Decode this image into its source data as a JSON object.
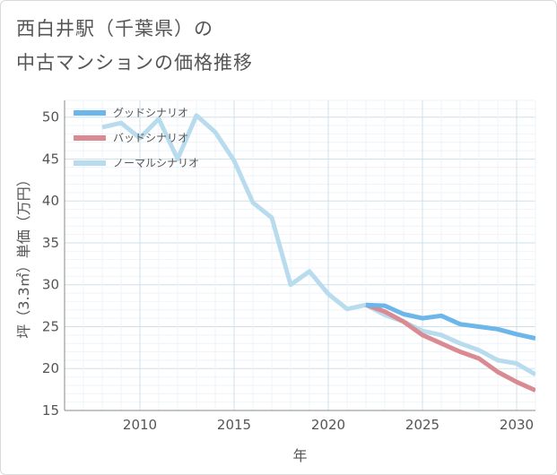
{
  "title_line1": "西白井駅（千葉県）の",
  "title_line2": "中古マンションの価格推移",
  "chart_data": {
    "type": "line",
    "title": "西白井駅（千葉県）の中古マンションの価格推移",
    "xlabel": "年",
    "ylabel": "坪（3.3㎡）単価（万円）",
    "xlim": [
      2006,
      2031
    ],
    "ylim": [
      15,
      52
    ],
    "xticks": [
      2010,
      2015,
      2020,
      2025,
      2030
    ],
    "yticks": [
      15,
      20,
      25,
      30,
      35,
      40,
      45,
      50
    ],
    "grid": true,
    "legend_position": "top-left",
    "series": [
      {
        "name": "グッドシナリオ",
        "color": "#6cb6ea",
        "x": [
          2022,
          2023,
          2024,
          2025,
          2026,
          2027,
          2028,
          2029,
          2030,
          2031
        ],
        "values": [
          27.6,
          27.5,
          26.5,
          26.0,
          26.3,
          25.3,
          25.0,
          24.7,
          24.1,
          23.6
        ]
      },
      {
        "name": "バッドシナリオ",
        "color": "#d98a92",
        "x": [
          2022,
          2023,
          2024,
          2025,
          2026,
          2027,
          2028,
          2029,
          2030,
          2031
        ],
        "values": [
          27.6,
          26.8,
          25.6,
          24.0,
          23.0,
          22.0,
          21.2,
          19.6,
          18.4,
          17.4
        ]
      },
      {
        "name": "ノーマルシナリオ",
        "color": "#b8dcee",
        "x": [
          2008,
          2009,
          2010,
          2011,
          2012,
          2013,
          2014,
          2015,
          2016,
          2017,
          2018,
          2019,
          2020,
          2021,
          2022,
          2023,
          2024,
          2025,
          2026,
          2027,
          2028,
          2029,
          2030,
          2031
        ],
        "values": [
          48.8,
          49.3,
          47.5,
          49.8,
          45.0,
          50.2,
          48.2,
          44.8,
          39.8,
          38.0,
          30.0,
          31.6,
          28.9,
          27.1,
          27.6,
          26.4,
          25.6,
          24.5,
          24.0,
          23.0,
          22.2,
          21.0,
          20.6,
          19.3
        ]
      }
    ]
  }
}
